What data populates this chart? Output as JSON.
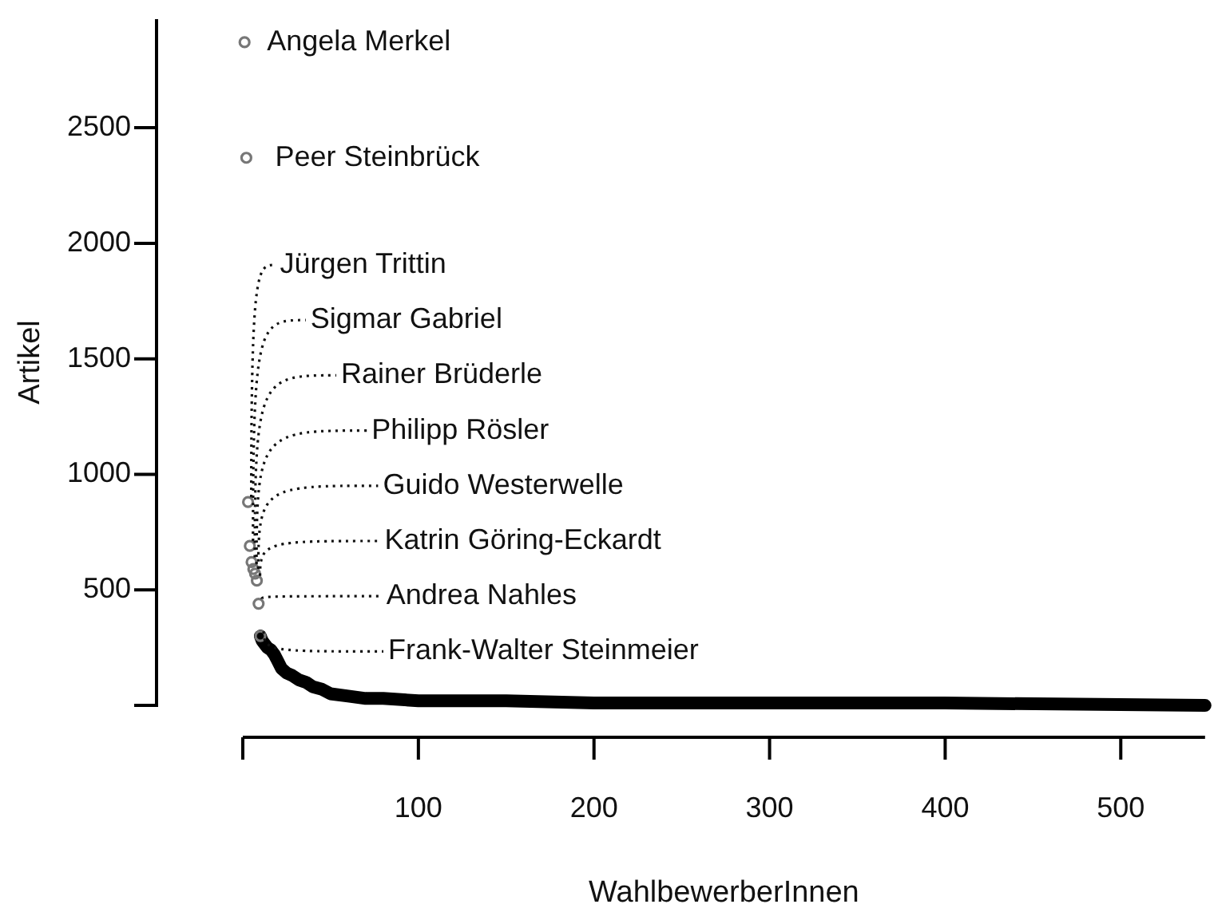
{
  "chart_data": {
    "type": "scatter",
    "xlabel": "WahlbewerberInnen",
    "ylabel": "Artikel",
    "xlim": [
      0,
      548
    ],
    "xticks": [
      100,
      200,
      300,
      400,
      500
    ],
    "ylim": [
      0,
      2970
    ],
    "yticks": [
      500,
      1000,
      1500,
      2000,
      2500
    ],
    "grid": false,
    "legend": false,
    "series": [
      {
        "marker": "circle",
        "color": "#777777",
        "x": [
          1,
          2,
          3,
          4,
          5,
          6,
          7,
          8,
          9,
          10
        ],
        "values": [
          2870,
          2370,
          880,
          690,
          620,
          590,
          570,
          540,
          440,
          300
        ]
      },
      {
        "type": "line",
        "marker": "none",
        "line_style": "solid",
        "color": "#000000",
        "x": [
          10,
          11,
          12,
          14,
          16,
          18,
          20,
          22,
          25,
          28,
          32,
          36,
          40,
          45,
          50,
          60,
          70,
          80,
          100,
          150,
          200,
          300,
          400,
          548
        ],
        "values": [
          300,
          280,
          270,
          250,
          240,
          220,
          190,
          160,
          140,
          130,
          110,
          100,
          80,
          70,
          50,
          40,
          30,
          30,
          20,
          20,
          10,
          10,
          10,
          0
        ]
      }
    ],
    "annotations": [
      {
        "text": "Angela Merkel",
        "x": 1,
        "y": 2870
      },
      {
        "text": "Peer Steinbrück",
        "x": 2,
        "y": 2370
      },
      {
        "text": "Jürgen Trittin",
        "x": 3,
        "y": 880
      },
      {
        "text": "Sigmar Gabriel",
        "x": 4,
        "y": 690
      },
      {
        "text": "Rainer Brüderle",
        "x": 5,
        "y": 620
      },
      {
        "text": "Philipp Rösler",
        "x": 6,
        "y": 590
      },
      {
        "text": "Guido Westerwelle",
        "x": 7,
        "y": 570
      },
      {
        "text": "Katrin Göring-Eckardt",
        "x": 8,
        "y": 540
      },
      {
        "text": "Andrea Nahles",
        "x": 9,
        "y": 440
      },
      {
        "text": "Frank-Walter Steinmeier",
        "x": 10,
        "y": 300
      }
    ]
  }
}
